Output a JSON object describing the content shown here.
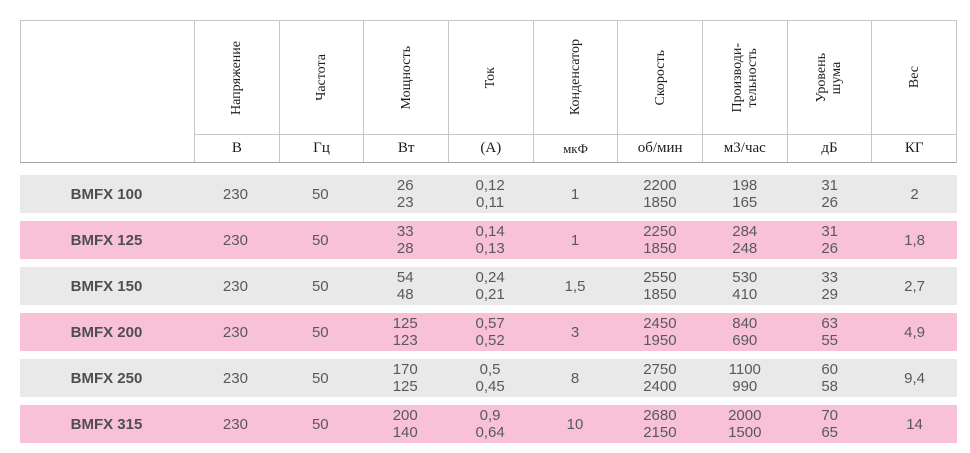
{
  "table": {
    "columns": [
      {
        "key": "voltage",
        "label_lines": [
          "Напряжение"
        ],
        "unit": "В"
      },
      {
        "key": "frequency",
        "label_lines": [
          "Частота"
        ],
        "unit": "Гц"
      },
      {
        "key": "power",
        "label_lines": [
          "Мощность"
        ],
        "unit": "Вт"
      },
      {
        "key": "current",
        "label_lines": [
          "Ток"
        ],
        "unit": "(А)"
      },
      {
        "key": "capacitor",
        "label_lines": [
          "Конденсатор"
        ],
        "unit": "мкФ"
      },
      {
        "key": "speed",
        "label_lines": [
          "Скорость"
        ],
        "unit": "об/мин"
      },
      {
        "key": "airflow",
        "label_lines": [
          "Производи-",
          "тельность"
        ],
        "unit": "м3/час"
      },
      {
        "key": "noise",
        "label_lines": [
          "Уровень",
          "шума"
        ],
        "unit": "дБ"
      },
      {
        "key": "weight",
        "label_lines": [
          "Вес"
        ],
        "unit": "КГ"
      }
    ],
    "rows": [
      {
        "model": "BMFX 100",
        "values": [
          [
            "230"
          ],
          [
            "50"
          ],
          [
            "26",
            "23"
          ],
          [
            "0,12",
            "0,11"
          ],
          [
            "1"
          ],
          [
            "2200",
            "1850"
          ],
          [
            "198",
            "165"
          ],
          [
            "31",
            "26"
          ],
          [
            "2"
          ]
        ]
      },
      {
        "model": "BMFX 125",
        "values": [
          [
            "230"
          ],
          [
            "50"
          ],
          [
            "33",
            "28"
          ],
          [
            "0,14",
            "0,13"
          ],
          [
            "1"
          ],
          [
            "2250",
            "1850"
          ],
          [
            "284",
            "248"
          ],
          [
            "31",
            "26"
          ],
          [
            "1,8"
          ]
        ]
      },
      {
        "model": "BMFX 150",
        "values": [
          [
            "230"
          ],
          [
            "50"
          ],
          [
            "54",
            "48"
          ],
          [
            "0,24",
            "0,21"
          ],
          [
            "1,5"
          ],
          [
            "2550",
            "1850"
          ],
          [
            "530",
            "410"
          ],
          [
            "33",
            "29"
          ],
          [
            "2,7"
          ]
        ]
      },
      {
        "model": "BMFX 200",
        "values": [
          [
            "230"
          ],
          [
            "50"
          ],
          [
            "125",
            "123"
          ],
          [
            "0,57",
            "0,52"
          ],
          [
            "3"
          ],
          [
            "2450",
            "1950"
          ],
          [
            "840",
            "690"
          ],
          [
            "63",
            "55"
          ],
          [
            "4,9"
          ]
        ]
      },
      {
        "model": "BMFX 250",
        "values": [
          [
            "230"
          ],
          [
            "50"
          ],
          [
            "170",
            "125"
          ],
          [
            "0,5",
            "0,45"
          ],
          [
            "8"
          ],
          [
            "2750",
            "2400"
          ],
          [
            "1100",
            "990"
          ],
          [
            "60",
            "58"
          ],
          [
            "9,4"
          ]
        ]
      },
      {
        "model": "BMFX 315",
        "values": [
          [
            "230"
          ],
          [
            "50"
          ],
          [
            "200",
            "140"
          ],
          [
            "0,9",
            "0,64"
          ],
          [
            "10"
          ],
          [
            "2680",
            "2150"
          ],
          [
            "2000",
            "1500"
          ],
          [
            "70",
            "65"
          ],
          [
            "14"
          ]
        ]
      }
    ]
  },
  "colors": {
    "row_gray": "#e9e9e9",
    "row_pink": "#f8c1d8",
    "border": "#c6c6c6",
    "data_text": "#59595b",
    "header_text": "#1c1c1c"
  }
}
